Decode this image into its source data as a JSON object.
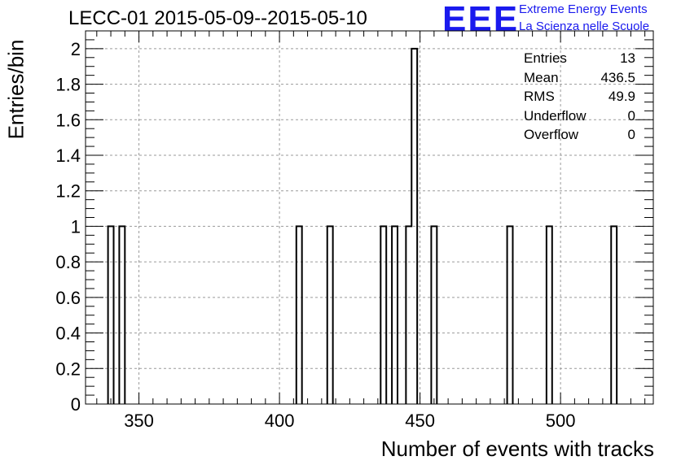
{
  "title": "LECC-01 2015-05-09--2015-05-10",
  "logo": {
    "mark": "EEE",
    "line1": "Extreme Energy Events",
    "line2": "La Scienza nelle Scuole",
    "color": "#1a1aee"
  },
  "stats": [
    {
      "label": "Entries",
      "value": "13"
    },
    {
      "label": "Mean",
      "value": "436.5"
    },
    {
      "label": "RMS",
      "value": "49.9"
    },
    {
      "label": "Underflow",
      "value": "0"
    },
    {
      "label": "Overflow",
      "value": "0"
    }
  ],
  "chart_data": {
    "type": "histogram",
    "xlabel": "Number of events with tracks",
    "ylabel": "Entries/bin",
    "xlim": [
      331,
      533
    ],
    "ylim": [
      0,
      2.1
    ],
    "bin_width": 2,
    "xticks": [
      350,
      400,
      450,
      500
    ],
    "yticks": [
      0,
      0.2,
      0.4,
      0.6,
      0.8,
      1,
      1.2,
      1.4,
      1.6,
      1.8,
      2
    ],
    "ytick_labels": [
      "0",
      "0.2",
      "0.4",
      "0.6",
      "0.8",
      "1",
      "1.2",
      "1.4",
      "1.6",
      "1.8",
      "2"
    ],
    "grid": true,
    "bins": [
      {
        "x": 340,
        "count": 1
      },
      {
        "x": 344,
        "count": 1
      },
      {
        "x": 407,
        "count": 1
      },
      {
        "x": 418,
        "count": 1
      },
      {
        "x": 437,
        "count": 1
      },
      {
        "x": 441,
        "count": 1
      },
      {
        "x": 446,
        "count": 1
      },
      {
        "x": 448,
        "count": 2
      },
      {
        "x": 455,
        "count": 1
      },
      {
        "x": 482,
        "count": 1
      },
      {
        "x": 496,
        "count": 1
      },
      {
        "x": 519,
        "count": 1
      }
    ]
  }
}
